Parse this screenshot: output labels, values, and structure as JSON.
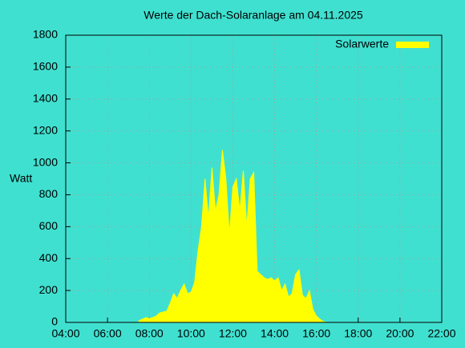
{
  "chart_data": {
    "type": "area",
    "title": "Werte der Dach-Solaranlage am 04.11.2025",
    "ylabel": "Watt",
    "series": [
      {
        "name": "Solarwerte",
        "color": "#ffff00",
        "x": [
          "07:30",
          "07:40",
          "07:50",
          "08:00",
          "08:10",
          "08:20",
          "08:30",
          "08:40",
          "08:50",
          "09:00",
          "09:10",
          "09:20",
          "09:30",
          "09:40",
          "09:50",
          "10:00",
          "10:10",
          "10:20",
          "10:30",
          "10:40",
          "10:50",
          "11:00",
          "11:10",
          "11:20",
          "11:30",
          "11:40",
          "11:50",
          "12:00",
          "12:10",
          "12:20",
          "12:30",
          "12:40",
          "12:50",
          "13:00",
          "13:10",
          "13:20",
          "13:30",
          "13:40",
          "13:50",
          "14:00",
          "14:10",
          "14:20",
          "14:30",
          "14:40",
          "14:50",
          "15:00",
          "15:10",
          "15:20",
          "15:30",
          "15:40",
          "15:50",
          "16:00",
          "16:10",
          "16:20",
          "16:30"
        ],
        "values": [
          10,
          20,
          30,
          25,
          30,
          40,
          60,
          65,
          70,
          120,
          180,
          150,
          200,
          240,
          180,
          190,
          250,
          450,
          600,
          900,
          650,
          970,
          700,
          800,
          1080,
          900,
          550,
          850,
          900,
          700,
          950,
          600,
          900,
          940,
          320,
          300,
          280,
          270,
          280,
          260,
          280,
          200,
          240,
          160,
          180,
          300,
          330,
          170,
          150,
          200,
          80,
          40,
          20,
          5,
          0
        ]
      }
    ],
    "xlim": [
      "04:00",
      "22:00"
    ],
    "xticks": [
      "04:00",
      "06:00",
      "08:00",
      "10:00",
      "12:00",
      "14:00",
      "16:00",
      "18:00",
      "20:00",
      "22:00"
    ],
    "ylim": [
      0,
      1800
    ],
    "yticks": [
      0,
      200,
      400,
      600,
      800,
      1000,
      1200,
      1400,
      1600,
      1800
    ],
    "grid": true,
    "legend": "top-right"
  }
}
